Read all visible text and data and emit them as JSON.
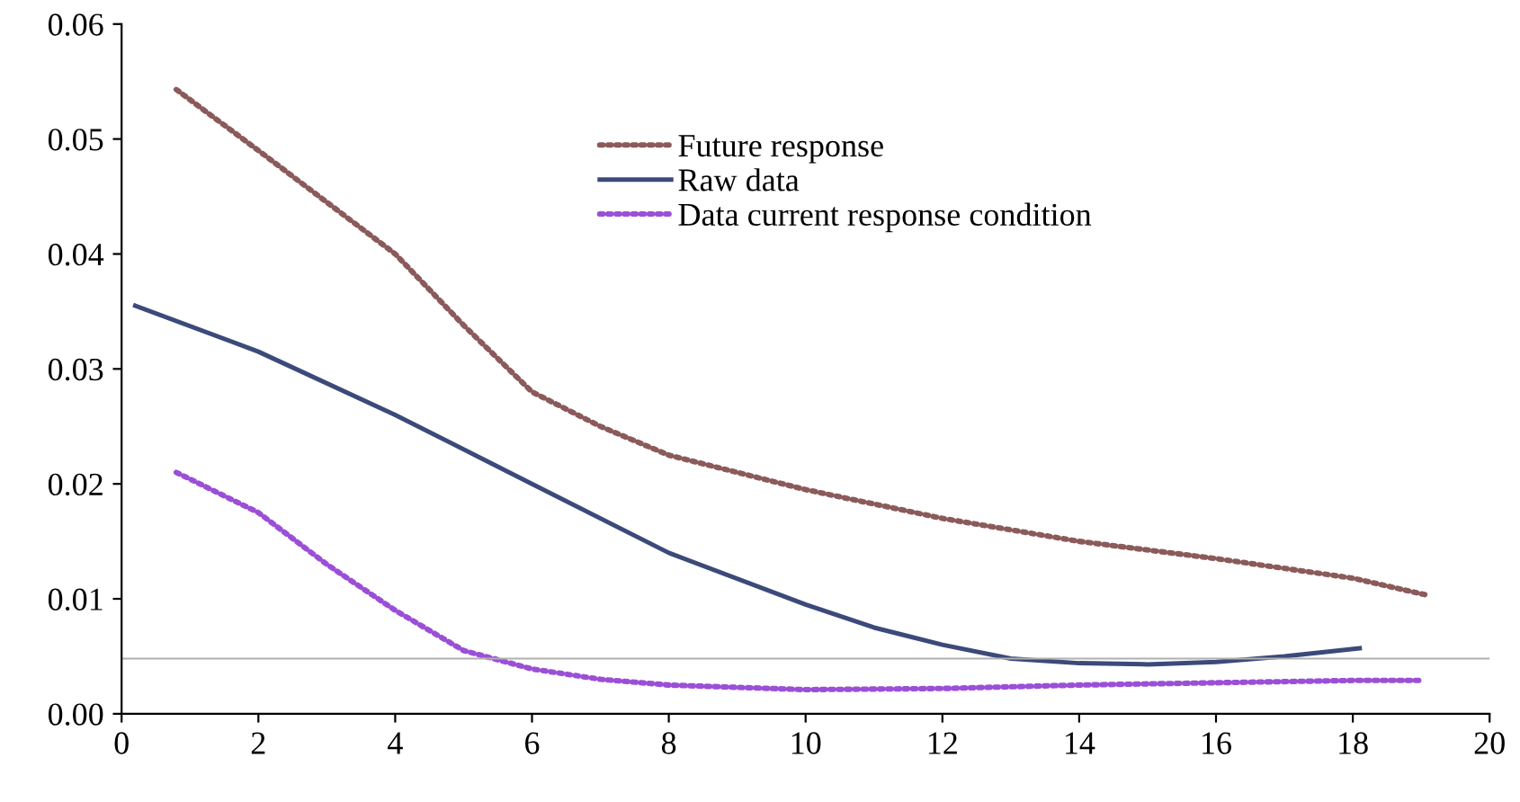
{
  "chart_data": {
    "type": "line",
    "xlim": [
      0,
      20
    ],
    "ylim": [
      0,
      0.06
    ],
    "xticks": [
      0,
      2,
      4,
      6,
      8,
      10,
      12,
      14,
      16,
      18,
      20
    ],
    "yticks": [
      {
        "value": 0,
        "label": "0.00"
      },
      {
        "value": 0.01,
        "label": "0.01"
      },
      {
        "value": 0.02,
        "label": "0.02"
      },
      {
        "value": 0.03,
        "label": "0.03"
      },
      {
        "value": 0.04,
        "label": "0.04"
      },
      {
        "value": 0.05,
        "label": "0.05"
      },
      {
        "value": 0.06,
        "label": "0.06"
      }
    ],
    "grid": false,
    "legend": "top",
    "marker": "none",
    "ref_lines": [
      {
        "axis": "y",
        "value": 0.0048,
        "label": null,
        "color": "#b0b0b0",
        "line_style": "solid"
      }
    ],
    "series": [
      {
        "name": "Future response",
        "color": "#8b5a5a",
        "line_style": "dotted",
        "x": [
          0.8,
          2,
          3,
          4,
          5,
          6,
          7,
          8,
          10,
          12,
          14,
          16,
          18,
          19.1
        ],
        "values": [
          0.0543,
          0.049,
          0.0445,
          0.04,
          0.0338,
          0.028,
          0.025,
          0.0225,
          0.0195,
          0.017,
          0.015,
          0.0135,
          0.0118,
          0.0103
        ]
      },
      {
        "name": "Raw data",
        "color": "#3c4a7a",
        "line_style": "solid",
        "x": [
          0.2,
          2,
          4,
          6,
          8,
          10,
          11,
          12,
          13,
          14,
          15,
          16,
          17,
          18.1
        ],
        "values": [
          0.0355,
          0.0315,
          0.026,
          0.02,
          0.014,
          0.0095,
          0.0075,
          0.006,
          0.0048,
          0.0044,
          0.0043,
          0.0045,
          0.005,
          0.0057
        ]
      },
      {
        "name": "Data current response condition",
        "color": "#9b4fd6",
        "line_style": "dotted",
        "x": [
          0.8,
          2,
          3,
          4,
          5,
          6,
          7,
          8,
          10,
          12,
          14,
          16,
          18,
          19
        ],
        "values": [
          0.021,
          0.0175,
          0.013,
          0.009,
          0.0055,
          0.0039,
          0.003,
          0.0025,
          0.0021,
          0.0022,
          0.0025,
          0.0027,
          0.0029,
          0.0029
        ]
      }
    ]
  }
}
